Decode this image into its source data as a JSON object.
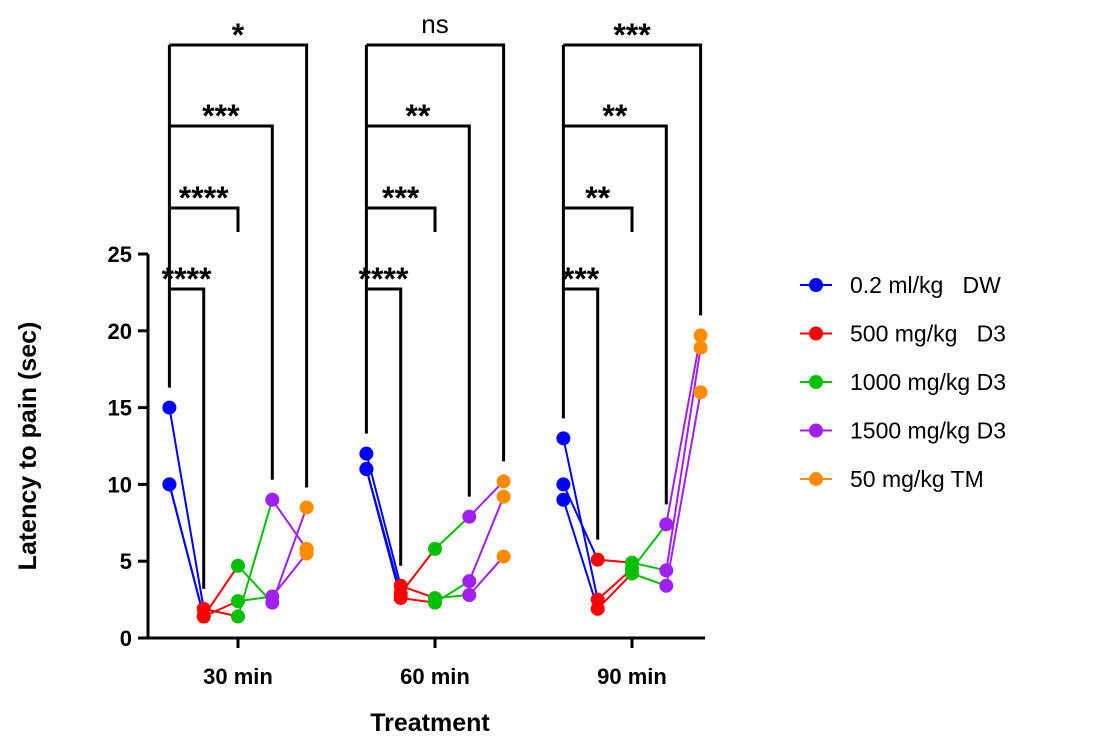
{
  "chart_data": {
    "type": "line",
    "x_label": "Treatment",
    "y_label": "Latency to pain (sec)",
    "categories": [
      "30 min",
      "60 min",
      "90 min"
    ],
    "ylim": [
      0,
      25
    ],
    "yticks": [
      0,
      5,
      10,
      15,
      20,
      25
    ],
    "series": [
      {
        "name": "0.2 ml/kg   DW",
        "color": "#0000ff",
        "values": [
          [
            15,
            10,
            10
          ],
          [
            12,
            11,
            11
          ],
          [
            13,
            10,
            9
          ]
        ]
      },
      {
        "name": "500 mg/kg   D3",
        "color": "#ff0000",
        "values": [
          [
            1.9,
            1.4,
            1.4
          ],
          [
            3.4,
            2.9,
            2.6
          ],
          [
            2.5,
            5.1,
            1.9
          ]
        ]
      },
      {
        "name": "1000 mg/kg D3",
        "color": "#00c000",
        "values": [
          [
            1.4,
            4.7,
            2.4
          ],
          [
            2.6,
            5.8,
            2.3
          ],
          [
            4.5,
            4.9,
            4.2
          ]
        ]
      },
      {
        "name": "1500 mg/kg D3",
        "color": "#a020f0",
        "values": [
          [
            9.0,
            2.3,
            2.7
          ],
          [
            2.8,
            7.9,
            3.7
          ],
          [
            7.4,
            4.4,
            3.4
          ]
        ]
      },
      {
        "name": "50 mg/kg TM",
        "color": "#ff8c00",
        "values": [
          [
            5.8,
            8.5,
            5.5
          ],
          [
            5.3,
            10.2,
            9.2
          ],
          [
            19.7,
            18.9,
            16.0
          ]
        ]
      }
    ],
    "annotations": [
      [
        "****",
        "****",
        "***",
        "*"
      ],
      [
        "****",
        "***",
        "**",
        "ns"
      ],
      [
        "***",
        "**",
        "**",
        "***"
      ]
    ]
  }
}
